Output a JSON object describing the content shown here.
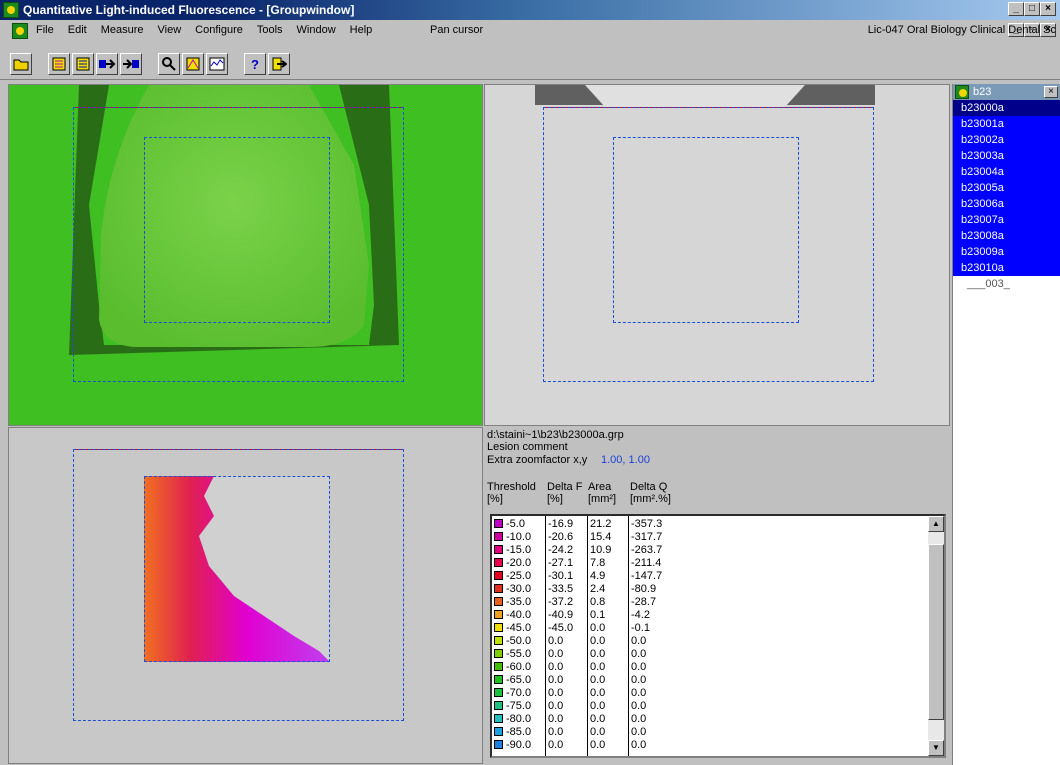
{
  "window": {
    "title": "Quantitative Light-induced Fluorescence - [Groupwindow]"
  },
  "menu": {
    "items": [
      "File",
      "Edit",
      "Measure",
      "View",
      "Configure",
      "Tools",
      "Window",
      "Help"
    ],
    "mode": "Pan cursor"
  },
  "license": "Lic-047 Oral Biology Clinical Dental Sc",
  "toolbar": {
    "help_label": "?"
  },
  "sidepanel": {
    "title": "b23",
    "close": "×",
    "items": [
      "b23000a",
      "b23001a",
      "b23002a",
      "b23003a",
      "b23004a",
      "b23005a",
      "b23006a",
      "b23007a",
      "b23008a",
      "b23009a",
      "b23010a",
      "___003_"
    ]
  },
  "info": {
    "path": "d:\\staini~1\\b23\\b23000a.grp",
    "lesion_comment": "Lesion comment",
    "zoom_label": "Extra zoomfactor x,y",
    "zoom_value": "1.00, 1.00",
    "headers": {
      "threshold": "Threshold",
      "threshold_unit": "[%]",
      "deltaf": "Delta F",
      "deltaf_unit": "[%]",
      "area": "Area",
      "area_unit": "[mm²]",
      "deltaq": "Delta Q",
      "deltaq_unit": "[mm².%]"
    }
  },
  "table": {
    "rows": [
      {
        "threshold": "-5.0",
        "deltaf": "-16.9",
        "area": "21.2",
        "deltaq": "-357.3",
        "color": "#c000c0"
      },
      {
        "threshold": "-10.0",
        "deltaf": "-20.6",
        "area": "15.4",
        "deltaq": "-317.7",
        "color": "#d000a0"
      },
      {
        "threshold": "-15.0",
        "deltaf": "-24.2",
        "area": "10.9",
        "deltaq": "-263.7",
        "color": "#e00080"
      },
      {
        "threshold": "-20.0",
        "deltaf": "-27.1",
        "area": "7.8",
        "deltaq": "-211.4",
        "color": "#e80050"
      },
      {
        "threshold": "-25.0",
        "deltaf": "-30.1",
        "area": "4.9",
        "deltaq": "-147.7",
        "color": "#e80020"
      },
      {
        "threshold": "-30.0",
        "deltaf": "-33.5",
        "area": "2.4",
        "deltaq": "-80.9",
        "color": "#e03020"
      },
      {
        "threshold": "-35.0",
        "deltaf": "-37.2",
        "area": "0.8",
        "deltaq": "-28.7",
        "color": "#e86020"
      },
      {
        "threshold": "-40.0",
        "deltaf": "-40.9",
        "area": "0.1",
        "deltaq": "-4.2",
        "color": "#f0a020"
      },
      {
        "threshold": "-45.0",
        "deltaf": "-45.0",
        "area": "0.0",
        "deltaq": "-0.1",
        "color": "#f0e000"
      },
      {
        "threshold": "-50.0",
        "deltaf": "0.0",
        "area": "0.0",
        "deltaq": "0.0",
        "color": "#c0e000"
      },
      {
        "threshold": "-55.0",
        "deltaf": "0.0",
        "area": "0.0",
        "deltaq": "0.0",
        "color": "#80d000"
      },
      {
        "threshold": "-60.0",
        "deltaf": "0.0",
        "area": "0.0",
        "deltaq": "0.0",
        "color": "#40c000"
      },
      {
        "threshold": "-65.0",
        "deltaf": "0.0",
        "area": "0.0",
        "deltaq": "0.0",
        "color": "#20c020"
      },
      {
        "threshold": "-70.0",
        "deltaf": "0.0",
        "area": "0.0",
        "deltaq": "0.0",
        "color": "#20c040"
      },
      {
        "threshold": "-75.0",
        "deltaf": "0.0",
        "area": "0.0",
        "deltaq": "0.0",
        "color": "#20c080"
      },
      {
        "threshold": "-80.0",
        "deltaf": "0.0",
        "area": "0.0",
        "deltaq": "0.0",
        "color": "#20c0c0"
      },
      {
        "threshold": "-85.0",
        "deltaf": "0.0",
        "area": "0.0",
        "deltaq": "0.0",
        "color": "#20a0e0"
      },
      {
        "threshold": "-90.0",
        "deltaf": "0.0",
        "area": "0.0",
        "deltaq": "0.0",
        "color": "#2080e0"
      }
    ]
  }
}
